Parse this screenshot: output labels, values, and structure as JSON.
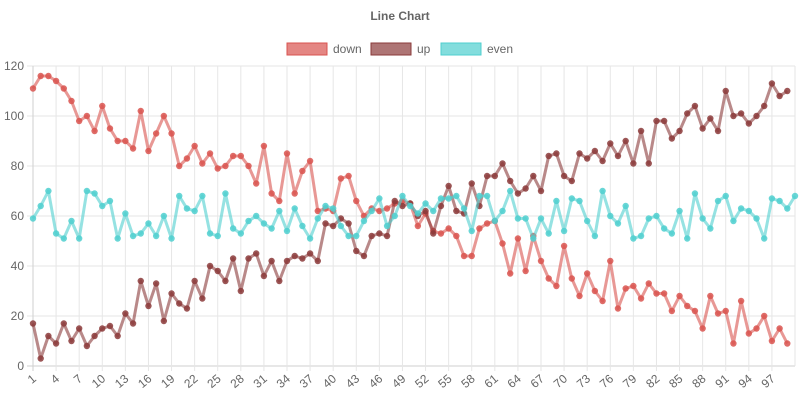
{
  "chart_data": {
    "type": "line",
    "title": "Line Chart",
    "legend_position": "top",
    "grid": true,
    "ylim": [
      0,
      120
    ],
    "y_ticks": [
      0,
      20,
      40,
      60,
      80,
      100,
      120
    ],
    "x": [
      1,
      2,
      3,
      4,
      5,
      6,
      7,
      8,
      9,
      10,
      11,
      12,
      13,
      14,
      15,
      16,
      17,
      18,
      19,
      20,
      21,
      22,
      23,
      24,
      25,
      26,
      27,
      28,
      29,
      30,
      31,
      32,
      33,
      34,
      35,
      36,
      37,
      38,
      39,
      40,
      41,
      42,
      43,
      44,
      45,
      46,
      47,
      48,
      49,
      50,
      51,
      52,
      53,
      54,
      55,
      56,
      57,
      58,
      59,
      60,
      61,
      62,
      63,
      64,
      65,
      66,
      67,
      68,
      69,
      70,
      71,
      72,
      73,
      74,
      75,
      76,
      77,
      78,
      79,
      80,
      81,
      82,
      83,
      84,
      85,
      86,
      87,
      88,
      89,
      90,
      91,
      92,
      93,
      94,
      95,
      96,
      97,
      98,
      99,
      100
    ],
    "x_tick_labels": [
      "1",
      "4",
      "7",
      "10",
      "13",
      "16",
      "19",
      "22",
      "25",
      "28",
      "31",
      "34",
      "37",
      "40",
      "43",
      "46",
      "49",
      "52",
      "55",
      "58",
      "61",
      "64",
      "67",
      "70",
      "73",
      "76",
      "79",
      "82",
      "85",
      "88",
      "91",
      "94",
      "97"
    ],
    "series": [
      {
        "name": "down",
        "color": "#d9534f",
        "values": [
          111,
          116,
          116,
          114,
          111,
          106,
          98,
          100,
          94,
          104,
          95,
          90,
          90,
          87,
          102,
          86,
          93,
          100,
          93,
          80,
          83,
          88,
          81,
          85,
          79,
          80,
          84,
          84,
          80,
          73,
          88,
          69,
          66,
          85,
          69,
          78,
          82,
          62,
          63,
          62,
          75,
          76,
          66,
          60,
          63,
          62,
          63,
          65,
          66,
          65,
          56,
          61,
          54,
          53,
          55,
          52,
          44,
          44,
          55,
          57,
          58,
          49,
          37,
          51,
          38,
          52,
          42,
          35,
          32,
          48,
          35,
          28,
          37,
          30,
          26,
          42,
          23,
          31,
          32,
          27,
          33,
          29,
          29,
          22,
          28,
          24,
          22,
          15,
          28,
          21,
          22,
          9,
          26,
          13,
          15,
          20,
          10,
          15,
          9,
          null
        ]
      },
      {
        "name": "up",
        "color": "#8b3a3a",
        "values": [
          17,
          3,
          12,
          9,
          17,
          10,
          15,
          8,
          12,
          15,
          16,
          12,
          21,
          17,
          34,
          24,
          33,
          18,
          29,
          25,
          23,
          34,
          27,
          40,
          38,
          34,
          43,
          30,
          43,
          45,
          36,
          42,
          34,
          42,
          44,
          43,
          45,
          42,
          57,
          56,
          59,
          57,
          46,
          44,
          52,
          53,
          52,
          66,
          64,
          65,
          60,
          62,
          53,
          64,
          72,
          62,
          61,
          73,
          64,
          76,
          76,
          81,
          74,
          69,
          71,
          76,
          70,
          84,
          85,
          76,
          74,
          85,
          83,
          86,
          82,
          89,
          84,
          90,
          81,
          94,
          81,
          98,
          98,
          91,
          94,
          101,
          104,
          95,
          99,
          94,
          110,
          100,
          101,
          97,
          100,
          104,
          113,
          108,
          110,
          null
        ]
      },
      {
        "name": "even",
        "color": "#4fcfcf",
        "values": [
          59,
          64,
          70,
          53,
          51,
          58,
          51,
          70,
          69,
          64,
          66,
          51,
          61,
          52,
          53,
          57,
          52,
          60,
          51,
          68,
          63,
          62,
          68,
          53,
          52,
          69,
          55,
          53,
          58,
          60,
          57,
          55,
          62,
          54,
          63,
          56,
          51,
          59,
          64,
          63,
          56,
          52,
          52,
          58,
          62,
          67,
          56,
          60,
          68,
          64,
          61,
          65,
          62,
          67,
          67,
          68,
          63,
          54,
          68,
          68,
          58,
          62,
          70,
          59,
          59,
          51,
          59,
          53,
          66,
          54,
          67,
          66,
          58,
          52,
          70,
          60,
          57,
          64,
          51,
          52,
          59,
          60,
          55,
          53,
          62,
          51,
          69,
          59,
          55,
          66,
          68,
          58,
          63,
          62,
          59,
          51,
          67,
          66,
          63,
          68
        ]
      }
    ]
  }
}
